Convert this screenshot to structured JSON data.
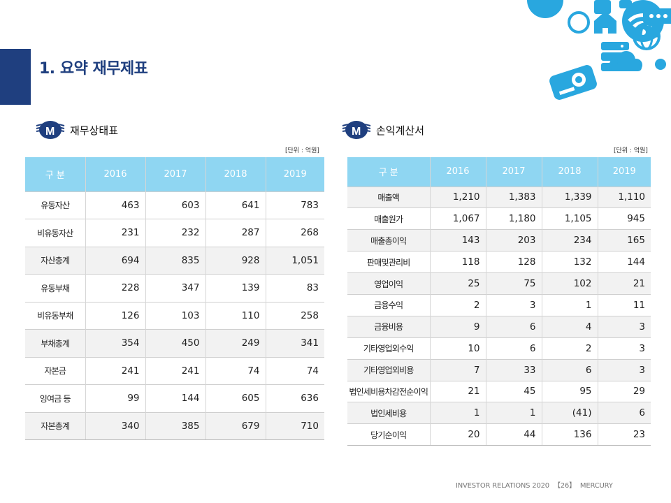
{
  "header": {
    "title": "1. 요약 재무제표"
  },
  "balance_sheet": {
    "title": "재무상태표",
    "unit": "[단위 : 억원]",
    "columns": [
      "구 분",
      "2016",
      "2017",
      "2018",
      "2019"
    ],
    "rows": [
      [
        "유동자산",
        "463",
        "603",
        "641",
        "783"
      ],
      [
        "비유동자산",
        "231",
        "232",
        "287",
        "268"
      ],
      [
        "자산총계",
        "694",
        "835",
        "928",
        "1,051"
      ],
      [
        "유동부채",
        "228",
        "347",
        "139",
        "83"
      ],
      [
        "비유동부채",
        "126",
        "103",
        "110",
        "258"
      ],
      [
        "부채총계",
        "354",
        "450",
        "249",
        "341"
      ],
      [
        "자본금",
        "241",
        "241",
        "74",
        "74"
      ],
      [
        "잉여금 등",
        "99",
        "144",
        "605",
        "636"
      ],
      [
        "자본총계",
        "340",
        "385",
        "679",
        "710"
      ]
    ]
  },
  "income_statement": {
    "title": "손익계산서",
    "unit": "[단위 : 억원]",
    "columns": [
      "구 분",
      "2016",
      "2017",
      "2018",
      "2019"
    ],
    "rows": [
      [
        "매출액",
        "1,210",
        "1,383",
        "1,339",
        "1,110"
      ],
      [
        "매출원가",
        "1,067",
        "1,180",
        "1,105",
        "945"
      ],
      [
        "매출총이익",
        "143",
        "203",
        "234",
        "165"
      ],
      [
        "판매및관리비",
        "118",
        "128",
        "132",
        "144"
      ],
      [
        "영업이익",
        "25",
        "75",
        "102",
        "21"
      ],
      [
        "금융수익",
        "2",
        "3",
        "1",
        "11"
      ],
      [
        "금융비용",
        "9",
        "6",
        "4",
        "3"
      ],
      [
        "기타영업외수익",
        "10",
        "6",
        "2",
        "3"
      ],
      [
        "기타영업외비용",
        "7",
        "33",
        "6",
        "3"
      ],
      [
        "법인세비용차감전순이익",
        "21",
        "45",
        "95",
        "29"
      ],
      [
        "법인세비용",
        "1",
        "1",
        "(41)",
        "6"
      ],
      [
        "당기순이익",
        "20",
        "44",
        "136",
        "23"
      ]
    ]
  },
  "footer": {
    "left": "INVESTOR RELATIONS 2020",
    "page": "【26】",
    "company": "MERCURY"
  },
  "colors": {
    "brand_navy": "#1f3f7f",
    "header_cell": "#8fd6f2",
    "icon_blue": "#29a7df",
    "alt_row": "#f2f2f2"
  },
  "icons": [
    "wifi-icon",
    "home-network-icon",
    "router-icon",
    "globe-icon",
    "server-icon",
    "cloud-icon",
    "projector-icon",
    "antenna-icon"
  ]
}
